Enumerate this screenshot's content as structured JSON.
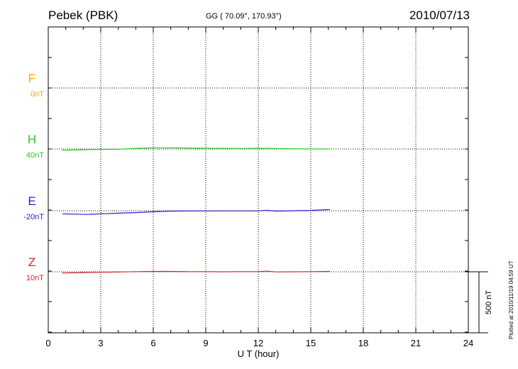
{
  "header": {
    "station": "Pebek (PBK)",
    "coords": "GG ( 70.09°, 170.93°)",
    "date": "2010/07/13"
  },
  "plotted_stamp": "Plotted at 2010/11/19 04:59 UT",
  "chart_data": {
    "type": "line",
    "xlabel": "U T (hour)",
    "xlim": [
      0,
      24
    ],
    "x_ticks": [
      "0",
      "3",
      "6",
      "9",
      "12",
      "15",
      "18",
      "21",
      "24"
    ],
    "scale_bar_label": "500 nT",
    "grid": true,
    "series": [
      {
        "name": "F",
        "baseline_label": "0nT",
        "color": "#FFA500",
        "x": [],
        "y": []
      },
      {
        "name": "H",
        "baseline_label": "40nT",
        "color": "#22CC22",
        "x": [
          0.8,
          1.5,
          2.2,
          3.0,
          4.0,
          5.0,
          6.0,
          7.0,
          8.0,
          9.0,
          10.0,
          11.0,
          12.0,
          13.0,
          14.0,
          15.0,
          16.1
        ],
        "y": [
          -10,
          -8,
          -5,
          -3,
          -2,
          5,
          10,
          10,
          8,
          6,
          5,
          4,
          6,
          4,
          2,
          1,
          1
        ]
      },
      {
        "name": "E",
        "baseline_label": "-20nT",
        "color": "#2222CC",
        "x": [
          0.8,
          1.5,
          2.2,
          3.0,
          4.0,
          5.0,
          6.0,
          7.0,
          8.0,
          9.0,
          10.0,
          11.0,
          12.0,
          12.5,
          13.0,
          14.0,
          15.0,
          16.1
        ],
        "y": [
          -25,
          -28,
          -30,
          -25,
          -20,
          -15,
          -8,
          -3,
          -2,
          -2,
          -1,
          -1,
          -1,
          4,
          -3,
          0,
          3,
          10
        ]
      },
      {
        "name": "Z",
        "baseline_label": "10nT",
        "color": "#DD2222",
        "x": [
          0.8,
          1.5,
          2.2,
          3.0,
          4.0,
          5.0,
          6.0,
          7.0,
          8.0,
          9.0,
          10.0,
          11.0,
          12.0,
          12.5,
          13.0,
          14.0,
          15.0,
          16.1
        ],
        "y": [
          -10,
          -8,
          -6,
          -4,
          -2,
          1,
          3,
          3,
          1,
          1,
          0,
          1,
          2,
          5,
          -1,
          0,
          1,
          3
        ]
      }
    ]
  }
}
